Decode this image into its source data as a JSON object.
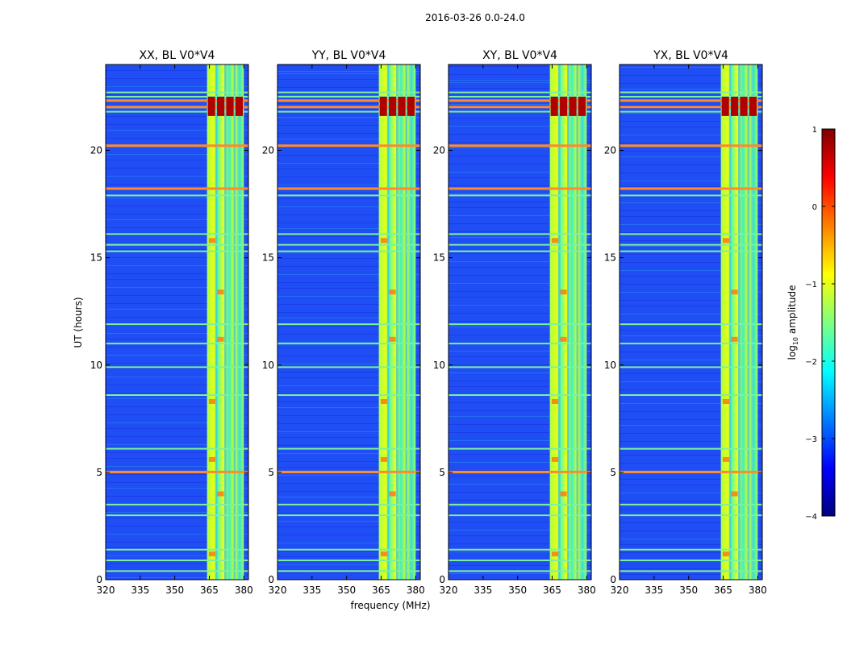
{
  "figure": {
    "suptitle": "2016-03-26 0.0-24.0",
    "xlabel": "frequency (MHz)",
    "ylabel": "UT (hours)"
  },
  "chart_data": [
    {
      "type": "heatmap",
      "title": "XX, BL V0*V4",
      "xlabel": "",
      "ylabel": "UT (hours)",
      "xlim": [
        320,
        382
      ],
      "ylim": [
        0,
        24
      ],
      "xticks": [
        320,
        335,
        350,
        365,
        380
      ],
      "yticks": [
        0,
        5,
        10,
        15,
        20
      ],
      "band_mhz": [
        364,
        380
      ],
      "rfi_band_hours": [
        0.4,
        0.9,
        1.4,
        3.0,
        3.5,
        5.0,
        6.1,
        8.6,
        9.9,
        11.0,
        11.9,
        15.3,
        15.6,
        16.1,
        17.9,
        18.2,
        20.2,
        21.8,
        22.5,
        22.7
      ],
      "hot_band_hours": [
        5.0,
        18.2,
        20.2,
        22.0,
        22.3
      ],
      "colorscale": "log10 amplitude"
    },
    {
      "type": "heatmap",
      "title": "YY, BL V0*V4",
      "xlabel": "frequency (MHz)",
      "ylabel": "",
      "xlim": [
        320,
        382
      ],
      "ylim": [
        0,
        24
      ],
      "xticks": [
        320,
        335,
        350,
        365,
        380
      ],
      "yticks": [
        0,
        5,
        10,
        15,
        20
      ],
      "band_mhz": [
        364,
        380
      ],
      "rfi_band_hours": [
        0.4,
        0.9,
        1.4,
        3.0,
        3.5,
        5.0,
        6.1,
        8.6,
        9.9,
        11.0,
        11.9,
        15.3,
        15.6,
        16.1,
        17.9,
        18.2,
        20.2,
        21.8,
        22.5,
        22.7
      ],
      "hot_band_hours": [
        5.0,
        18.2,
        20.2,
        22.0,
        22.3
      ],
      "colorscale": "log10 amplitude"
    },
    {
      "type": "heatmap",
      "title": "XY, BL V0*V4",
      "xlabel": "",
      "ylabel": "",
      "xlim": [
        320,
        382
      ],
      "ylim": [
        0,
        24
      ],
      "xticks": [
        320,
        335,
        350,
        365,
        380
      ],
      "yticks": [
        0,
        5,
        10,
        15,
        20
      ],
      "band_mhz": [
        364,
        380
      ],
      "rfi_band_hours": [
        0.4,
        0.9,
        1.4,
        3.0,
        3.5,
        5.0,
        6.1,
        8.6,
        9.9,
        11.0,
        11.9,
        15.3,
        15.6,
        16.1,
        17.9,
        18.2,
        20.2,
        21.8,
        22.5,
        22.7
      ],
      "hot_band_hours": [
        5.0,
        18.2,
        20.2,
        22.0,
        22.3
      ],
      "colorscale": "log10 amplitude"
    },
    {
      "type": "heatmap",
      "title": "YX, BL V0*V4",
      "xlabel": "",
      "ylabel": "",
      "xlim": [
        320,
        382
      ],
      "ylim": [
        0,
        24
      ],
      "xticks": [
        320,
        335,
        350,
        365,
        380
      ],
      "yticks": [
        0,
        5,
        10,
        15,
        20
      ],
      "band_mhz": [
        364,
        380
      ],
      "rfi_band_hours": [
        0.4,
        0.9,
        1.4,
        3.0,
        3.5,
        5.0,
        6.1,
        8.6,
        9.9,
        11.0,
        11.9,
        15.3,
        15.6,
        16.1,
        17.9,
        18.2,
        20.2,
        21.8,
        22.5,
        22.7
      ],
      "hot_band_hours": [
        5.0,
        18.2,
        20.2,
        22.0,
        22.3
      ],
      "colorscale": "log10 amplitude"
    }
  ],
  "colorbar": {
    "label_main": "log",
    "label_sub": "10",
    "label_rest": " amplitude",
    "ticks": [
      {
        "value": 1,
        "label": "1"
      },
      {
        "value": 0,
        "label": "0"
      },
      {
        "value": -1,
        "label": "−1"
      },
      {
        "value": -2,
        "label": "−2"
      },
      {
        "value": -3,
        "label": "−3"
      },
      {
        "value": -4,
        "label": "−4"
      }
    ],
    "range": [
      -4,
      1
    ],
    "stops": [
      "#00007f",
      "#0000ff",
      "#007fff",
      "#00ffff",
      "#7fff7f",
      "#ffff00",
      "#ff7f00",
      "#ff0000",
      "#7f0000"
    ]
  }
}
